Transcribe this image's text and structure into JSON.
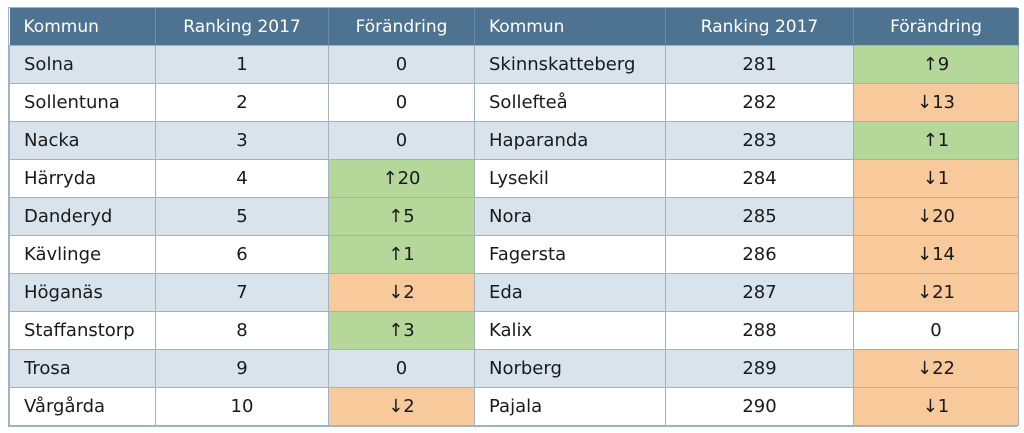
{
  "headers": {
    "kommun": "Kommun",
    "ranking": "Ranking 2017",
    "forandring": "Förändring"
  },
  "colors": {
    "header_bg": "#4e7390",
    "row_alt": "#d8e3ec",
    "up": "#b5d79a",
    "down": "#f8c99b"
  },
  "rows": [
    {
      "left": {
        "name": "Solna",
        "rank": "1",
        "change": "0",
        "dir": "none"
      },
      "right": {
        "name": "Skinnskatteberg",
        "rank": "281",
        "change": "↑9",
        "dir": "up"
      }
    },
    {
      "left": {
        "name": "Sollentuna",
        "rank": "2",
        "change": "0",
        "dir": "none"
      },
      "right": {
        "name": "Sollefteå",
        "rank": "282",
        "change": "↓13",
        "dir": "down"
      }
    },
    {
      "left": {
        "name": "Nacka",
        "rank": "3",
        "change": "0",
        "dir": "none"
      },
      "right": {
        "name": "Haparanda",
        "rank": "283",
        "change": "↑1",
        "dir": "up"
      }
    },
    {
      "left": {
        "name": "Härryda",
        "rank": "4",
        "change": "↑20",
        "dir": "up"
      },
      "right": {
        "name": "Lysekil",
        "rank": "284",
        "change": "↓1",
        "dir": "down"
      }
    },
    {
      "left": {
        "name": "Danderyd",
        "rank": "5",
        "change": "↑5",
        "dir": "up"
      },
      "right": {
        "name": "Nora",
        "rank": "285",
        "change": "↓20",
        "dir": "down"
      }
    },
    {
      "left": {
        "name": "Kävlinge",
        "rank": "6",
        "change": "↑1",
        "dir": "up"
      },
      "right": {
        "name": "Fagersta",
        "rank": "286",
        "change": "↓14",
        "dir": "down"
      }
    },
    {
      "left": {
        "name": "Höganäs",
        "rank": "7",
        "change": "↓2",
        "dir": "down"
      },
      "right": {
        "name": "Eda",
        "rank": "287",
        "change": "↓21",
        "dir": "down"
      }
    },
    {
      "left": {
        "name": "Staffanstorp",
        "rank": "8",
        "change": "↑3",
        "dir": "up"
      },
      "right": {
        "name": "Kalix",
        "rank": "288",
        "change": "0",
        "dir": "none"
      }
    },
    {
      "left": {
        "name": "Trosa",
        "rank": "9",
        "change": "0",
        "dir": "none"
      },
      "right": {
        "name": "Norberg",
        "rank": "289",
        "change": "↓22",
        "dir": "down"
      }
    },
    {
      "left": {
        "name": "Vårgårda",
        "rank": "10",
        "change": "↓2",
        "dir": "down"
      },
      "right": {
        "name": "Pajala",
        "rank": "290",
        "change": "↓1",
        "dir": "down"
      }
    }
  ]
}
